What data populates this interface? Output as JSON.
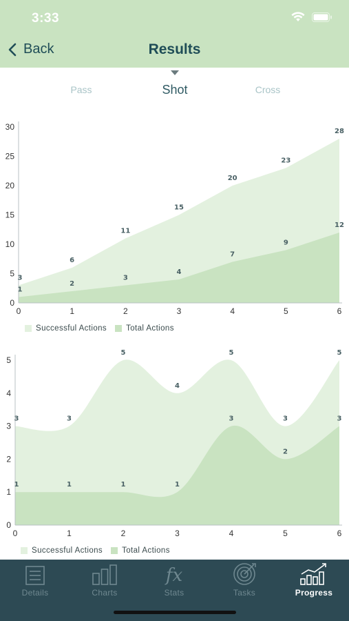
{
  "status_bar": {
    "time": "3:33"
  },
  "nav": {
    "back_label": "Back",
    "title": "Results"
  },
  "tabs": [
    {
      "label": "Pass",
      "active": false
    },
    {
      "label": "Shot",
      "active": true
    },
    {
      "label": "Cross",
      "active": false
    }
  ],
  "colors": {
    "header_bg": "#c9e3c1",
    "tabbar_bg": "#2d4a54",
    "total_fill": "#e3f1df",
    "successful_fill": "#c9e3c1",
    "title_text": "#1f4d57"
  },
  "chart_data": [
    {
      "type": "area",
      "x": [
        0,
        1,
        2,
        3,
        4,
        5,
        6
      ],
      "xlim": [
        0,
        6
      ],
      "ylim": [
        0,
        30
      ],
      "yticks": [
        0,
        5,
        10,
        15,
        20,
        25,
        30
      ],
      "legend_position": "bottom-left",
      "legend": [
        "Successful Actions",
        "Total Actions"
      ],
      "series": [
        {
          "name": "Total Actions",
          "values": [
            3,
            6,
            11,
            15,
            20,
            23,
            28
          ]
        },
        {
          "name": "Successful Actions",
          "values": [
            1,
            2,
            3,
            4,
            7,
            9,
            12
          ]
        }
      ]
    },
    {
      "type": "area",
      "x": [
        0,
        1,
        2,
        3,
        4,
        5,
        6
      ],
      "xlim": [
        0,
        6
      ],
      "ylim": [
        0,
        5
      ],
      "yticks": [
        0,
        1,
        2,
        3,
        4,
        5
      ],
      "legend_position": "bottom-left",
      "legend": [
        "Successful Actions",
        "Total Actions"
      ],
      "series": [
        {
          "name": "Total Actions",
          "values": [
            3,
            3,
            5,
            4,
            5,
            3,
            5
          ]
        },
        {
          "name": "Successful Actions",
          "values": [
            1,
            1,
            1,
            1,
            3,
            2,
            3
          ]
        }
      ]
    }
  ],
  "tabbar": [
    {
      "label": "Details",
      "icon": "details-icon",
      "active": false
    },
    {
      "label": "Charts",
      "icon": "charts-icon",
      "active": false
    },
    {
      "label": "Stats",
      "icon": "fx-icon",
      "active": false
    },
    {
      "label": "Tasks",
      "icon": "target-icon",
      "active": false
    },
    {
      "label": "Progress",
      "icon": "progress-icon",
      "active": true
    }
  ]
}
